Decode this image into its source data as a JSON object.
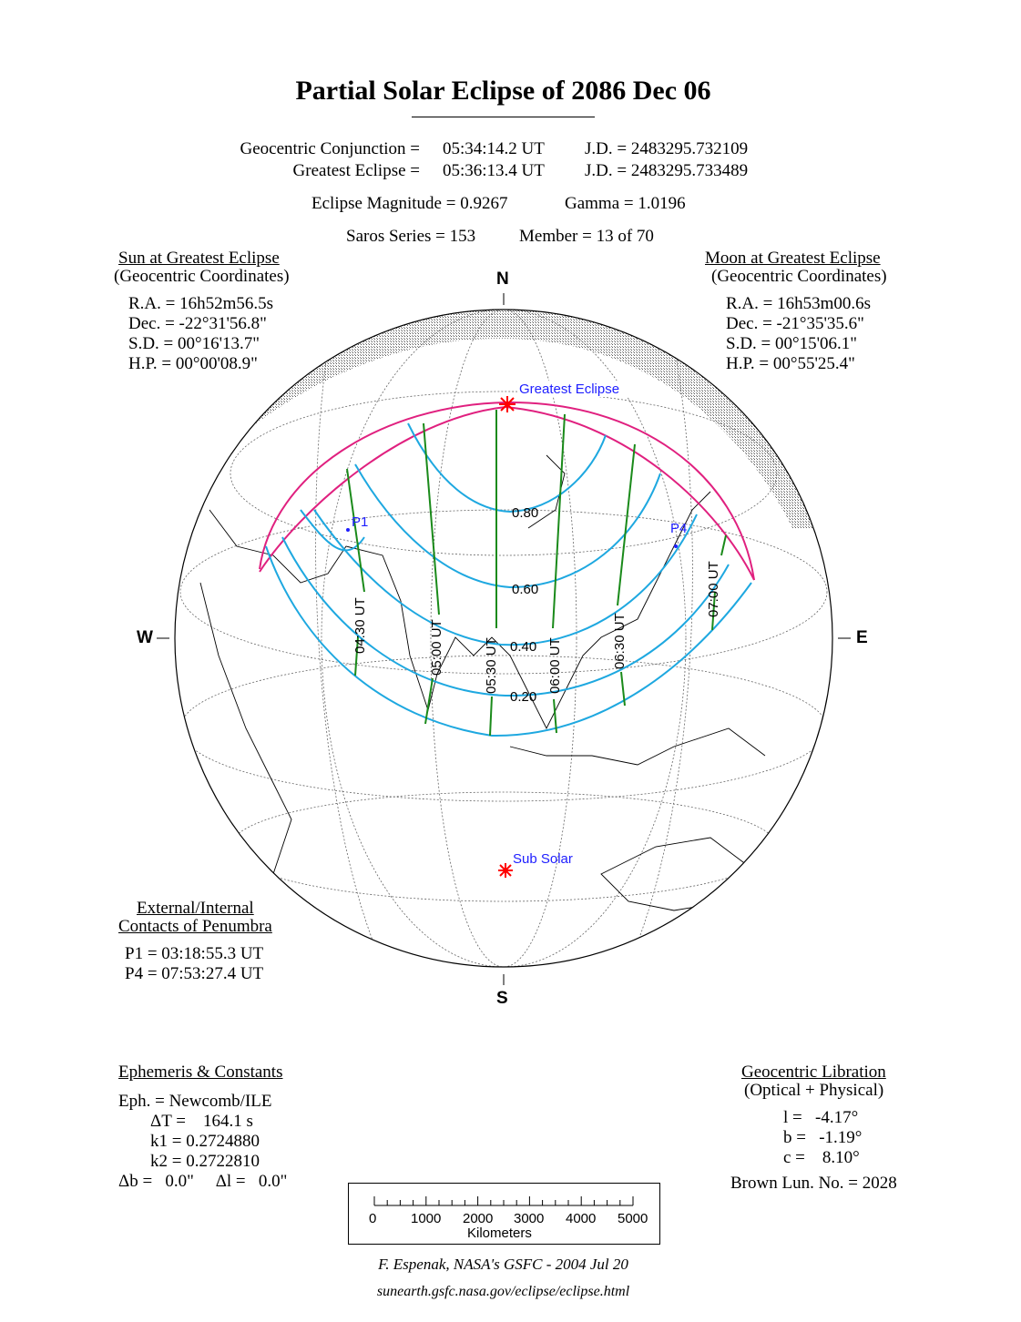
{
  "title": "Partial Solar Eclipse of  2086 Dec 06",
  "header": {
    "conjunction_label": "Geocentric Conjunction =",
    "conjunction_time": "05:34:14.2 UT",
    "conjunction_jd": "J.D. =  2483295.732109",
    "greatest_label": "Greatest Eclipse =",
    "greatest_time": "05:36:13.4 UT",
    "greatest_jd": "J.D. =  2483295.733489",
    "magnitude": "Eclipse Magnitude =  0.9267",
    "gamma": "Gamma =  1.0196",
    "saros": "Saros Series = 153",
    "member": "Member = 13 of 70"
  },
  "sun": {
    "heading": "Sun at Greatest Eclipse",
    "subheading": "(Geocentric Coordinates)",
    "ra": "R.A. = 16h52m56.5s",
    "dec": "Dec. = -22°31'56.8\"",
    "sd": "S.D. =  00°16'13.7\"",
    "hp": "H.P. =  00°00'08.9\""
  },
  "moon": {
    "heading": "Moon at Greatest Eclipse",
    "subheading": "(Geocentric Coordinates)",
    "ra": "R.A. = 16h53m00.6s",
    "dec": "Dec. = -21°35'35.6\"",
    "sd": "S.D. =  00°15'06.1\"",
    "hp": "H.P. =  00°55'25.4\""
  },
  "contacts": {
    "heading1": "External/Internal",
    "heading2": "Contacts of Penumbra",
    "p1": "P1 = 03:18:55.3 UT",
    "p4": "P4 = 07:53:27.4 UT"
  },
  "ephemeris": {
    "heading": "Ephemeris & Constants",
    "eph": "Eph. = Newcomb/ILE",
    "dt": "ΔT =    164.1 s",
    "k1": "k1 = 0.2724880",
    "k2": "k2 = 0.2722810",
    "db": "Δb =   0.0\"     Δl =   0.0\""
  },
  "libration": {
    "heading": "Geocentric Libration",
    "subheading": "(Optical + Physical)",
    "l": "l =   -4.17°",
    "b": "b =   -1.19°",
    "c": "c =    8.10°",
    "brown": "Brown Lun. No. = 2028"
  },
  "map": {
    "compass": {
      "n": "N",
      "s": "S",
      "e": "E",
      "w": "W"
    },
    "greatest_eclipse_label": "Greatest Eclipse",
    "sub_solar_label": "Sub Solar",
    "p1_label": "P1",
    "p4_label": "P4",
    "magnitude_labels": [
      "0.80",
      "0.60",
      "0.40",
      "0.20"
    ],
    "time_labels": [
      "04:30 UT",
      "05:00 UT",
      "05:30 UT",
      "06:00 UT",
      "06:30 UT",
      "07:00 UT"
    ],
    "colors": {
      "penumbra_limits": "#e0207f",
      "magnitude_curves": "#1ea8e0",
      "time_lines": "#1a8a1a",
      "markers": "#ff0000",
      "labels": "#1e1eff"
    }
  },
  "scale": {
    "ticks": [
      "0",
      "1000",
      "2000",
      "3000",
      "4000",
      "5000"
    ],
    "unit": "Kilometers"
  },
  "credit": "F. Espenak, NASA's GSFC -  2004 Jul 20",
  "url": "sunearth.gsfc.nasa.gov/eclipse/eclipse.html"
}
